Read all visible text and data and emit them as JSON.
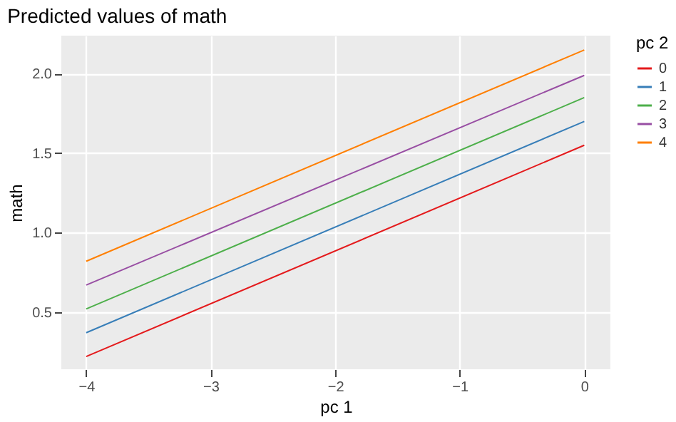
{
  "chart_data": {
    "type": "line",
    "title": "Predicted values of math",
    "xlabel": "pc 1",
    "ylabel": "math",
    "legend_title": "pc 2",
    "x": [
      -4,
      0
    ],
    "series": [
      {
        "name": "0",
        "color": "#e41a1c",
        "values": [
          0.22,
          1.55
        ]
      },
      {
        "name": "1",
        "color": "#377eb8",
        "values": [
          0.37,
          1.7
        ]
      },
      {
        "name": "2",
        "color": "#4daf4a",
        "values": [
          0.52,
          1.85
        ]
      },
      {
        "name": "3",
        "color": "#984ea3",
        "values": [
          0.67,
          1.99
        ]
      },
      {
        "name": "4",
        "color": "#ff7f00",
        "values": [
          0.82,
          2.15
        ]
      }
    ],
    "xlim": [
      -4.2,
      0.21
    ],
    "ylim": [
      0.14,
      2.24
    ],
    "xticks": [
      -4,
      -3,
      -2,
      -1,
      0
    ],
    "yticks": [
      0.5,
      {
        "value": 1,
        "label": "1.0"
      },
      1.5,
      {
        "value": 2,
        "label": "2.0"
      }
    ],
    "grid": true,
    "legend": "right",
    "marker": "none",
    "line_style": "solid"
  }
}
